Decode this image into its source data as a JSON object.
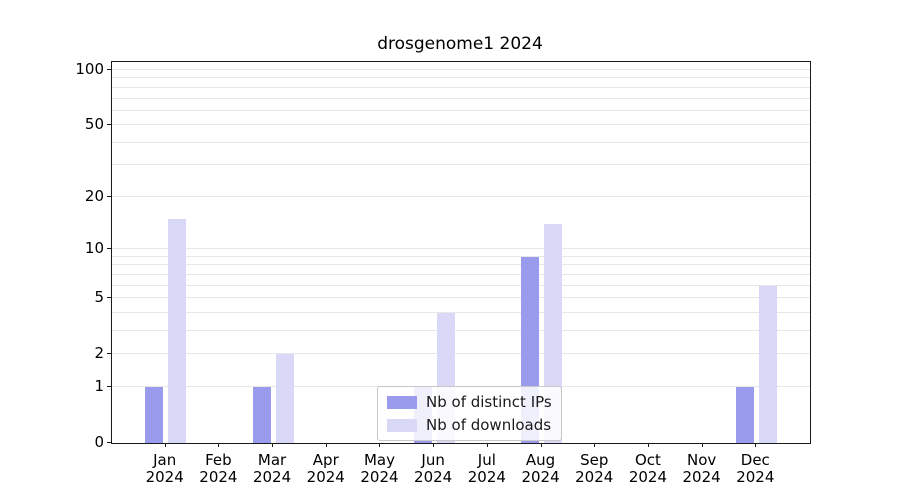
{
  "title": "drosgenome1 2024",
  "chart_data": {
    "type": "bar",
    "title": "drosgenome1 2024",
    "categories": [
      "Jan",
      "Feb",
      "Mar",
      "Apr",
      "May",
      "Jun",
      "Jul",
      "Aug",
      "Sep",
      "Oct",
      "Nov",
      "Dec"
    ],
    "year_label": "2024",
    "series": [
      {
        "name": "Nb of distinct IPs",
        "color": "#9b9bee",
        "values": [
          1,
          0,
          1,
          0,
          0,
          1,
          0,
          9,
          0,
          0,
          0,
          1
        ]
      },
      {
        "name": "Nb of downloads",
        "color": "#d9d9f7",
        "values": [
          15,
          0,
          2,
          0,
          0,
          4,
          0,
          14,
          0,
          0,
          0,
          6
        ]
      }
    ],
    "y_ticks": [
      0,
      1,
      2,
      5,
      10,
      20,
      50,
      100
    ],
    "gridlines": [
      1,
      2,
      3,
      4,
      5,
      6,
      7,
      8,
      9,
      10,
      20,
      30,
      40,
      50,
      60,
      70,
      80,
      90,
      100
    ],
    "scale": "log1p",
    "ylim": [
      0,
      110
    ],
    "grid": true,
    "legend_position": "lower-center-inside"
  }
}
